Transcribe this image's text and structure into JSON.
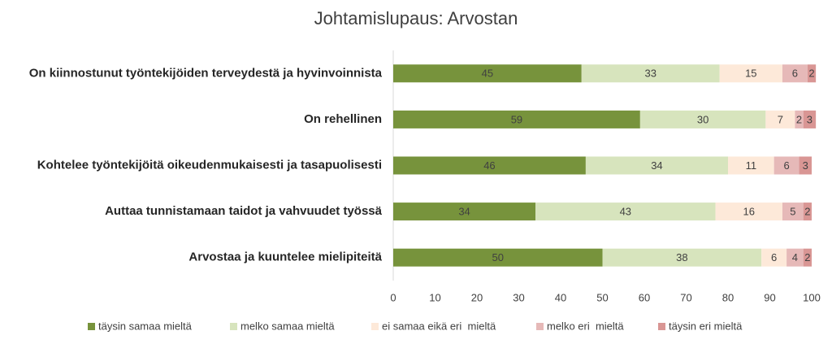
{
  "chart_data": {
    "type": "stacked_barh",
    "title": "Johtamislupaus: Arvostan",
    "categories": [
      "On kiinnostunut työntekijöiden terveydestä ja hyvinvoinnista",
      "On rehellinen",
      "Kohtelee työntekijöitä oikeudenmukaisesti ja tasapuolisesti",
      "Auttaa tunnistamaan taidot ja vahvuudet työssä",
      "Arvostaa ja kuuntelee mielipiteitä"
    ],
    "series": [
      {
        "name": "täysin samaa mieltä",
        "color": "#77933c",
        "values": [
          45,
          59,
          46,
          34,
          50
        ]
      },
      {
        "name": "melko samaa mieltä",
        "color": "#d7e4bd",
        "values": [
          33,
          30,
          34,
          43,
          38
        ]
      },
      {
        "name": "ei samaa eikä eri  mieltä",
        "color": "#fde9d9",
        "values": [
          15,
          7,
          11,
          16,
          6
        ]
      },
      {
        "name": "melko eri  mieltä",
        "color": "#e6b9b8",
        "values": [
          6,
          2,
          6,
          5,
          4
        ]
      },
      {
        "name": "täysin eri mieltä",
        "color": "#d99694",
        "values": [
          2,
          3,
          3,
          2,
          2
        ]
      }
    ],
    "xlim": [
      0,
      100
    ],
    "xticks": [
      0,
      10,
      20,
      30,
      40,
      50,
      60,
      70,
      80,
      90,
      100
    ],
    "legend": "bottom"
  }
}
